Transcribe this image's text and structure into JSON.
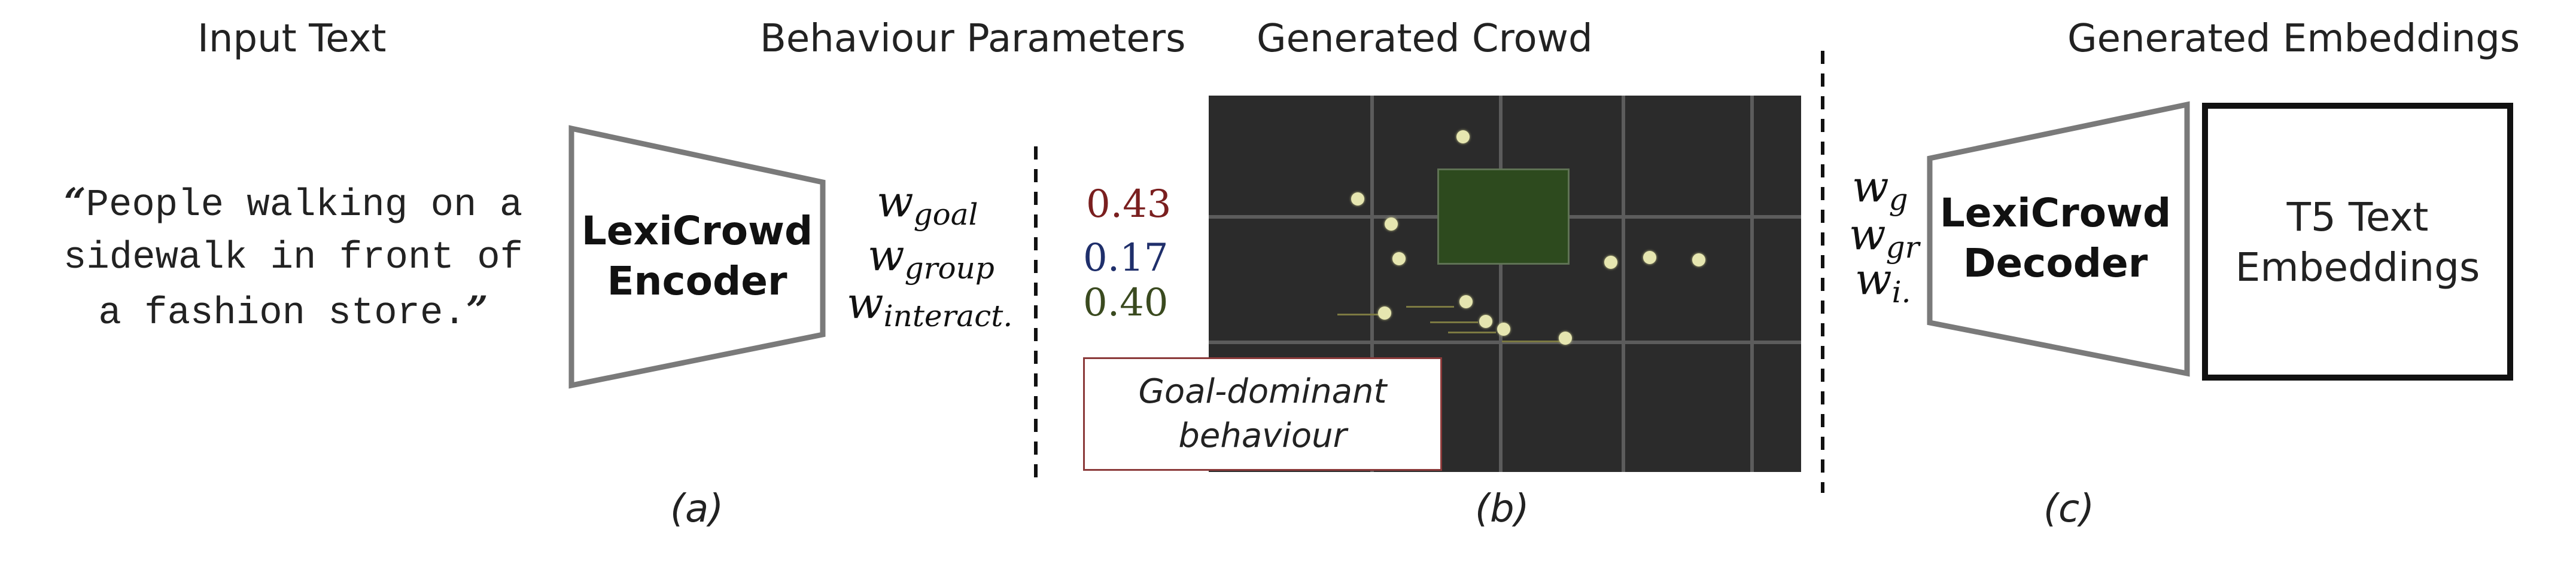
{
  "headings": {
    "input": "Input Text",
    "params": "Behaviour Parameters",
    "crowd": "Generated Crowd",
    "embeddings": "Generated Embeddings"
  },
  "input_text": {
    "open_quote": "“",
    "lines": [
      "People walking on a",
      "sidewalk in front of",
      "a fashion store."
    ],
    "close_quote": "”"
  },
  "encoder": {
    "line1": "LexiCrowd",
    "line2": "Encoder"
  },
  "decoder": {
    "line1": "LexiCrowd",
    "line2": "Decoder"
  },
  "params": [
    {
      "symbol": "w",
      "sub": "goal",
      "value": "0.43",
      "color": "#7a1f1f"
    },
    {
      "symbol": "w",
      "sub": "group",
      "value": "0.17",
      "color": "#1f2f6b"
    },
    {
      "symbol": "w",
      "sub": "interact.",
      "value": "0.40",
      "color": "#3a4a1f"
    }
  ],
  "decoder_params": [
    {
      "symbol": "w",
      "sub": "g"
    },
    {
      "symbol": "w",
      "sub": "gr"
    },
    {
      "symbol": "w",
      "sub": "i."
    }
  ],
  "behaviour_label": {
    "line1": "Goal-dominant",
    "line2": "behaviour"
  },
  "t5": {
    "line1": "T5 Text",
    "line2": "Embeddings"
  },
  "captions": {
    "a": "(a)",
    "b": "(b)",
    "c": "(c)"
  },
  "colors": {
    "behaviour_border": "#8b3a3a",
    "scene_bg": "#2b2b2b",
    "agent": "#e6e6b0",
    "obstacle": "#2d4a1e"
  }
}
